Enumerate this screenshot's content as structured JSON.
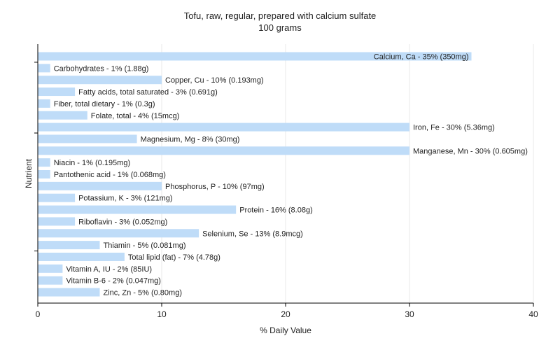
{
  "chart_data": {
    "type": "bar",
    "orientation": "horizontal",
    "title": "Tofu, raw, regular, prepared with calcium sulfate",
    "subtitle": "100 grams",
    "xlabel": "% Daily Value",
    "ylabel": "Nutrient",
    "xlim": [
      0,
      40
    ],
    "xticks": [
      "0",
      "10",
      "20",
      "30",
      "40"
    ],
    "grid": true,
    "bar_color": "#bfdcf8",
    "grid_color": "#e8e8e8",
    "categories": [
      "Calcium, Ca",
      "Carbohydrates",
      "Copper, Cu",
      "Fatty acids, total saturated",
      "Fiber, total dietary",
      "Folate, total",
      "Iron, Fe",
      "Magnesium, Mg",
      "Manganese, Mn",
      "Niacin",
      "Pantothenic acid",
      "Phosphorus, P",
      "Potassium, K",
      "Protein",
      "Riboflavin",
      "Selenium, Se",
      "Thiamin",
      "Total lipid (fat)",
      "Vitamin A, IU",
      "Vitamin B-6",
      "Zinc, Zn"
    ],
    "values": [
      35,
      1,
      10,
      3,
      1,
      4,
      30,
      8,
      30,
      1,
      1,
      10,
      3,
      16,
      3,
      13,
      5,
      7,
      2,
      2,
      5
    ],
    "labels": [
      "Calcium, Ca - 35% (350mg)",
      "Carbohydrates - 1% (1.88g)",
      "Copper, Cu - 10% (0.193mg)",
      "Fatty acids, total saturated - 3% (0.691g)",
      "Fiber, total dietary - 1% (0.3g)",
      "Folate, total - 4% (15mcg)",
      "Iron, Fe - 30% (5.36mg)",
      "Magnesium, Mg - 8% (30mg)",
      "Manganese, Mn - 30% (0.605mg)",
      "Niacin - 1% (0.195mg)",
      "Pantothenic acid - 1% (0.068mg)",
      "Phosphorus, P - 10% (97mg)",
      "Potassium, K - 3% (121mg)",
      "Protein - 16% (8.08g)",
      "Riboflavin - 3% (0.052mg)",
      "Selenium, Se - 13% (8.9mcg)",
      "Thiamin - 5% (0.081mg)",
      "Total lipid (fat) - 7% (4.78g)",
      "Vitamin A, IU - 2% (85IU)",
      "Vitamin B-6 - 2% (0.047mg)",
      "Zinc, Zn - 5% (0.80mg)"
    ]
  }
}
